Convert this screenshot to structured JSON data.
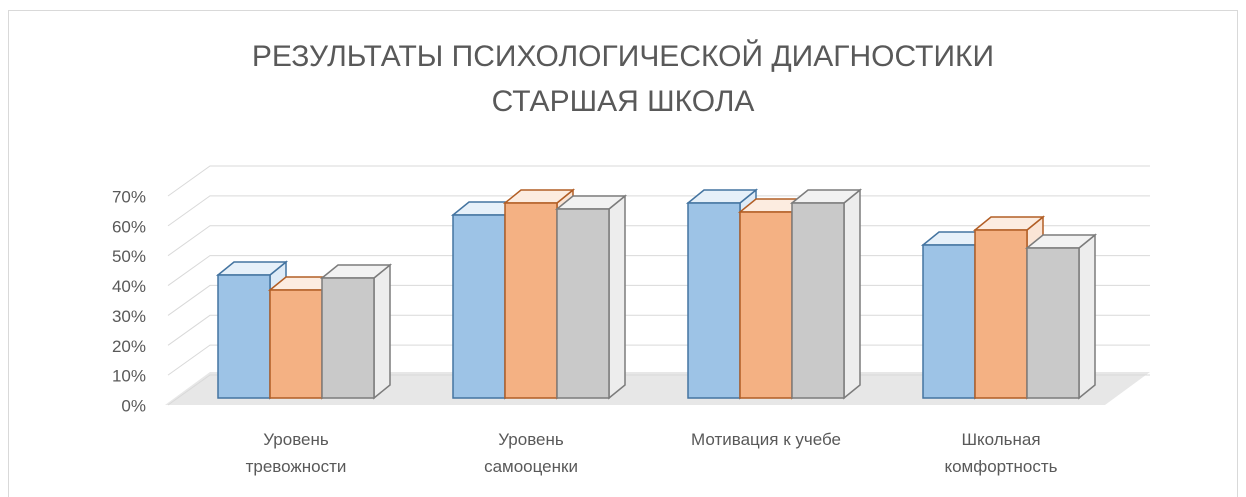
{
  "chart_data": {
    "type": "bar3d",
    "title": [
      "РЕЗУЛЬТАТЫ ПСИХОЛОГИЧЕСКОЙ ДИАГНОСТИКИ",
      "СТАРШАЯ ШКОЛА"
    ],
    "categories": [
      "Уровень\nтревожности",
      "Уровень\nсамооценки",
      "Мотивация к учебе",
      "Школьная\nкомфортность"
    ],
    "series": [
      {
        "color": "#5b9bd5",
        "values": [
          41,
          61,
          65,
          51
        ]
      },
      {
        "color": "#ed7d31",
        "values": [
          36,
          65,
          62,
          56
        ]
      },
      {
        "color": "#a5a5a5",
        "values": [
          40,
          63,
          65,
          50
        ]
      }
    ],
    "ylim": [
      0,
      70
    ],
    "yticks": [
      {
        "value": 0,
        "label": "0%"
      },
      {
        "value": 10,
        "label": "10%"
      },
      {
        "value": 20,
        "label": "20%"
      },
      {
        "value": 30,
        "label": "30%"
      },
      {
        "value": 40,
        "label": "40%"
      },
      {
        "value": 50,
        "label": "50%"
      },
      {
        "value": 60,
        "label": "60%"
      },
      {
        "value": 70,
        "label": "70%"
      }
    ],
    "grid": true
  }
}
